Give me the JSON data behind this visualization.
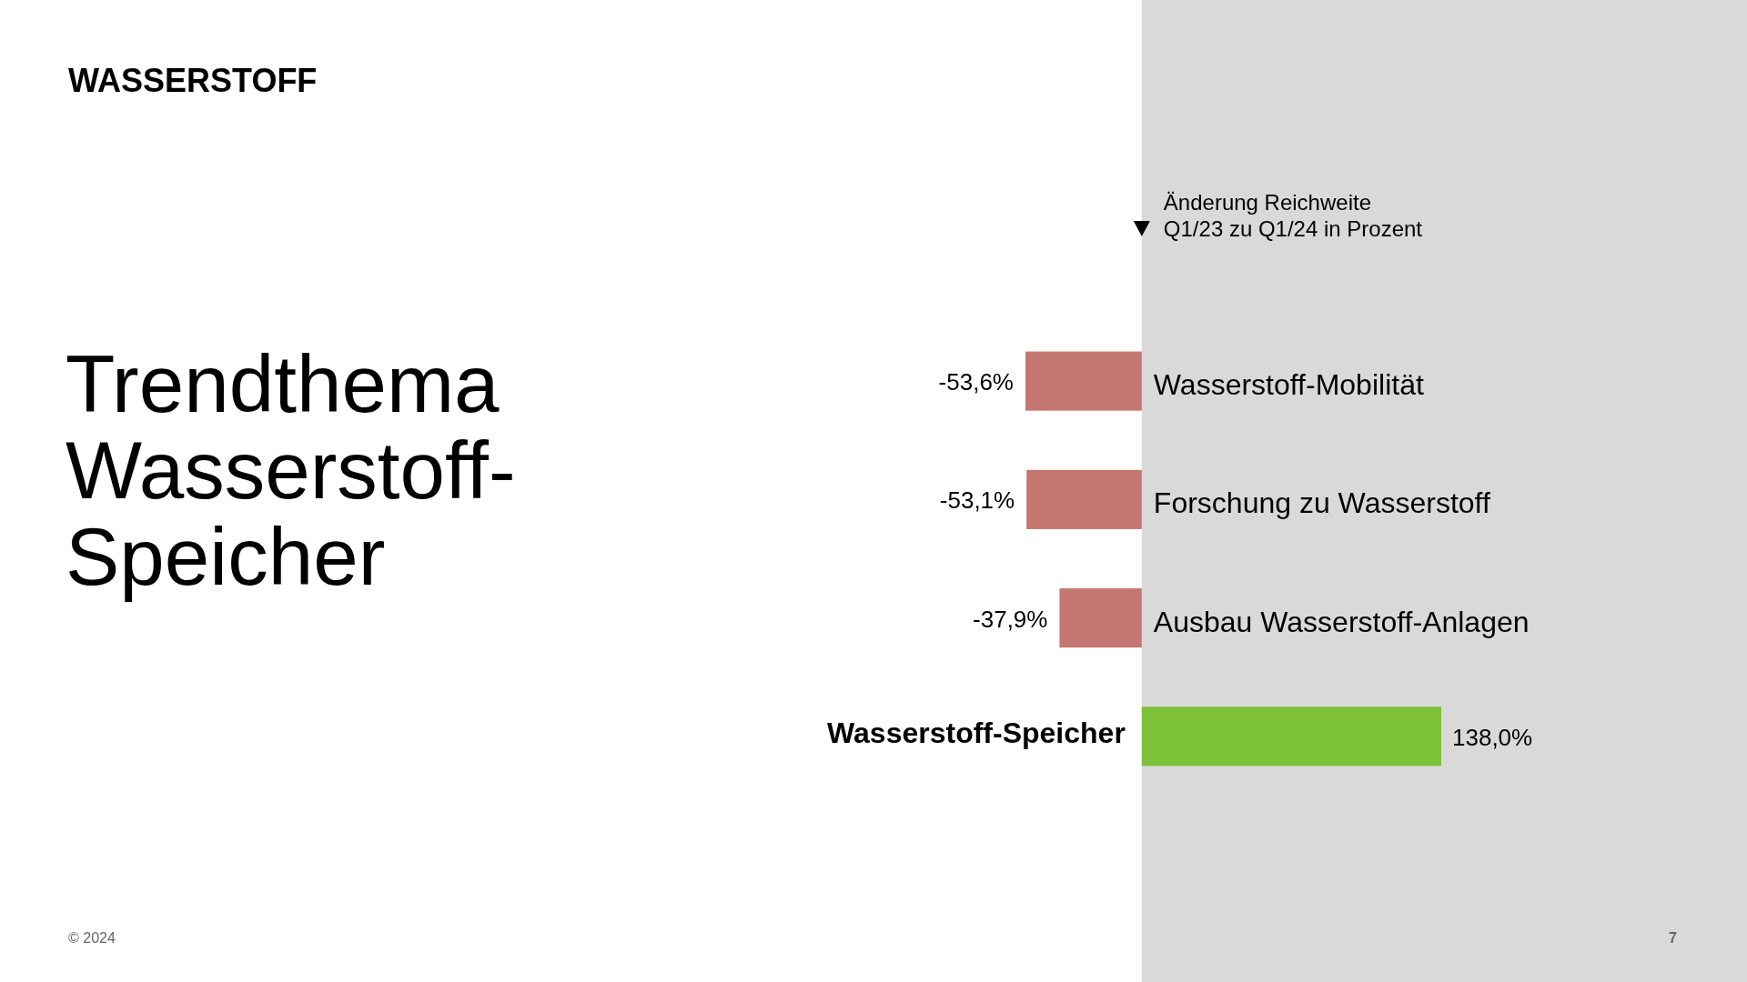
{
  "chart_data": {
    "type": "bar",
    "orientation": "horizontal",
    "title": "WASSERSTOFF",
    "subtitle": "Trendthema Wasserstoff-Speicher",
    "categories": [
      "Wasserstoff-Mobilität",
      "Forschung zu Wasserstoff",
      "Ausbau Wasserstoff-Anlagen",
      "Wasserstoff-Speicher"
    ],
    "values": [
      -53.6,
      -53.1,
      -37.9,
      138.0
    ],
    "colors": [
      "#c47770",
      "#c47770",
      "#c47770",
      "#7cc137"
    ],
    "value_labels": [
      "-53,6%",
      "-53,1%",
      "-37,9%",
      "138,0%"
    ],
    "bands": [
      {
        "axis": "x",
        "from": 0,
        "to": 279,
        "color": "#d9d9d9"
      }
    ],
    "annotations": [
      "Änderung Reichweite\nQ1/23 zu Q1/24 in Prozent",
      "© 2024",
      "7"
    ]
  }
}
